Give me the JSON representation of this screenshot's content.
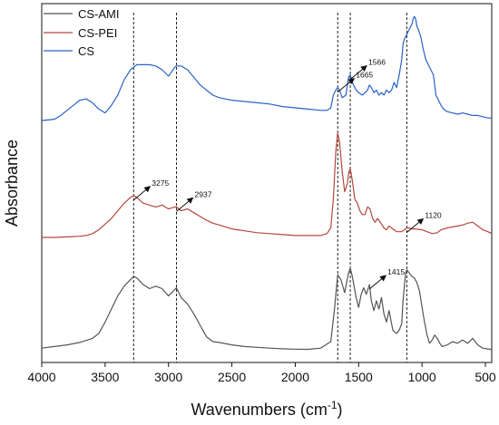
{
  "chart_data": {
    "type": "line",
    "title": "",
    "xlabel": "Wavenumbers (cm",
    "xlabel_sup": "-1",
    "xlabel_close": ")",
    "ylabel": "Absorbance",
    "xlim": [
      4000,
      450
    ],
    "x_reversed": true,
    "x_ticks": [
      4000,
      3500,
      3000,
      2500,
      2000,
      1500,
      1000,
      500
    ],
    "y_ticks_shown": false,
    "grid": false,
    "legend_position": "top-left",
    "series": [
      {
        "name": "CS-AMI",
        "color": "#555555",
        "points": [
          [
            4000,
            0.01
          ],
          [
            3900,
            0.02
          ],
          [
            3800,
            0.03
          ],
          [
            3700,
            0.045
          ],
          [
            3600,
            0.07
          ],
          [
            3550,
            0.1
          ],
          [
            3500,
            0.17
          ],
          [
            3450,
            0.25
          ],
          [
            3400,
            0.33
          ],
          [
            3350,
            0.39
          ],
          [
            3300,
            0.43
          ],
          [
            3275,
            0.45
          ],
          [
            3250,
            0.44
          ],
          [
            3200,
            0.4
          ],
          [
            3150,
            0.375
          ],
          [
            3100,
            0.39
          ],
          [
            3050,
            0.375
          ],
          [
            3000,
            0.33
          ],
          [
            2950,
            0.37
          ],
          [
            2937,
            0.38
          ],
          [
            2900,
            0.32
          ],
          [
            2850,
            0.28
          ],
          [
            2800,
            0.22
          ],
          [
            2750,
            0.15
          ],
          [
            2700,
            0.08
          ],
          [
            2650,
            0.05
          ],
          [
            2600,
            0.045
          ],
          [
            2500,
            0.03
          ],
          [
            2400,
            0.02
          ],
          [
            2300,
            0.015
          ],
          [
            2200,
            0.01
          ],
          [
            2100,
            0.006
          ],
          [
            2000,
            0.004
          ],
          [
            1900,
            0.003
          ],
          [
            1800,
            0.01
          ],
          [
            1720,
            0.05
          ],
          [
            1690,
            0.25
          ],
          [
            1665,
            0.46
          ],
          [
            1640,
            0.43
          ],
          [
            1610,
            0.35
          ],
          [
            1580,
            0.47
          ],
          [
            1566,
            0.5
          ],
          [
            1550,
            0.45
          ],
          [
            1520,
            0.32
          ],
          [
            1500,
            0.26
          ],
          [
            1480,
            0.34
          ],
          [
            1460,
            0.38
          ],
          [
            1440,
            0.34
          ],
          [
            1415,
            0.4
          ],
          [
            1400,
            0.3
          ],
          [
            1380,
            0.24
          ],
          [
            1360,
            0.3
          ],
          [
            1340,
            0.25
          ],
          [
            1320,
            0.32
          ],
          [
            1300,
            0.22
          ],
          [
            1280,
            0.17
          ],
          [
            1260,
            0.24
          ],
          [
            1230,
            0.12
          ],
          [
            1200,
            0.1
          ],
          [
            1180,
            0.12
          ],
          [
            1160,
            0.16
          ],
          [
            1150,
            0.3
          ],
          [
            1130,
            0.47
          ],
          [
            1120,
            0.49
          ],
          [
            1100,
            0.47
          ],
          [
            1080,
            0.45
          ],
          [
            1060,
            0.44
          ],
          [
            1040,
            0.41
          ],
          [
            1020,
            0.36
          ],
          [
            1000,
            0.26
          ],
          [
            980,
            0.17
          ],
          [
            960,
            0.09
          ],
          [
            940,
            0.04
          ],
          [
            920,
            0.06
          ],
          [
            900,
            0.09
          ],
          [
            880,
            0.07
          ],
          [
            860,
            0.04
          ],
          [
            840,
            0.02
          ],
          [
            800,
            0.03
          ],
          [
            760,
            0.05
          ],
          [
            720,
            0.04
          ],
          [
            680,
            0.06
          ],
          [
            640,
            0.04
          ],
          [
            600,
            0.07
          ],
          [
            560,
            0.03
          ],
          [
            520,
            0.01
          ],
          [
            480,
            0.005
          ],
          [
            450,
            0.002
          ]
        ]
      },
      {
        "name": "CS-PEI",
        "color": "#b5473d",
        "points": [
          [
            4000,
            0.0
          ],
          [
            3900,
            0.0
          ],
          [
            3800,
            0.003
          ],
          [
            3700,
            0.006
          ],
          [
            3650,
            0.01
          ],
          [
            3600,
            0.02
          ],
          [
            3550,
            0.04
          ],
          [
            3500,
            0.07
          ],
          [
            3450,
            0.1
          ],
          [
            3400,
            0.14
          ],
          [
            3350,
            0.18
          ],
          [
            3300,
            0.21
          ],
          [
            3275,
            0.22
          ],
          [
            3250,
            0.21
          ],
          [
            3200,
            0.18
          ],
          [
            3150,
            0.17
          ],
          [
            3100,
            0.16
          ],
          [
            3050,
            0.17
          ],
          [
            3000,
            0.15
          ],
          [
            2950,
            0.16
          ],
          [
            2937,
            0.16
          ],
          [
            2900,
            0.14
          ],
          [
            2850,
            0.15
          ],
          [
            2800,
            0.13
          ],
          [
            2750,
            0.11
          ],
          [
            2700,
            0.09
          ],
          [
            2650,
            0.075
          ],
          [
            2600,
            0.065
          ],
          [
            2500,
            0.045
          ],
          [
            2400,
            0.035
          ],
          [
            2300,
            0.025
          ],
          [
            2200,
            0.02
          ],
          [
            2100,
            0.015
          ],
          [
            2000,
            0.01
          ],
          [
            1900,
            0.01
          ],
          [
            1800,
            0.01
          ],
          [
            1750,
            0.02
          ],
          [
            1720,
            0.05
          ],
          [
            1700,
            0.2
          ],
          [
            1680,
            0.45
          ],
          [
            1665,
            0.55
          ],
          [
            1650,
            0.5
          ],
          [
            1630,
            0.35
          ],
          [
            1610,
            0.24
          ],
          [
            1590,
            0.28
          ],
          [
            1575,
            0.35
          ],
          [
            1566,
            0.36
          ],
          [
            1550,
            0.3
          ],
          [
            1530,
            0.2
          ],
          [
            1510,
            0.18
          ],
          [
            1490,
            0.14
          ],
          [
            1470,
            0.12
          ],
          [
            1450,
            0.12
          ],
          [
            1430,
            0.16
          ],
          [
            1410,
            0.15
          ],
          [
            1390,
            0.1
          ],
          [
            1370,
            0.08
          ],
          [
            1350,
            0.1
          ],
          [
            1330,
            0.08
          ],
          [
            1300,
            0.05
          ],
          [
            1280,
            0.04
          ],
          [
            1260,
            0.06
          ],
          [
            1240,
            0.05
          ],
          [
            1200,
            0.03
          ],
          [
            1160,
            0.03
          ],
          [
            1140,
            0.04
          ],
          [
            1120,
            0.05
          ],
          [
            1100,
            0.05
          ],
          [
            1080,
            0.045
          ],
          [
            1050,
            0.045
          ],
          [
            1000,
            0.04
          ],
          [
            960,
            0.03
          ],
          [
            920,
            0.02
          ],
          [
            880,
            0.025
          ],
          [
            850,
            0.04
          ],
          [
            800,
            0.05
          ],
          [
            760,
            0.055
          ],
          [
            720,
            0.06
          ],
          [
            680,
            0.065
          ],
          [
            640,
            0.075
          ],
          [
            600,
            0.08
          ],
          [
            560,
            0.06
          ],
          [
            520,
            0.04
          ],
          [
            480,
            0.03
          ],
          [
            450,
            0.02
          ]
        ]
      },
      {
        "name": "CS",
        "color": "#2a62c9",
        "points": [
          [
            4000,
            0.0
          ],
          [
            3900,
            0.005
          ],
          [
            3850,
            0.02
          ],
          [
            3800,
            0.04
          ],
          [
            3750,
            0.06
          ],
          [
            3700,
            0.08
          ],
          [
            3650,
            0.085
          ],
          [
            3600,
            0.07
          ],
          [
            3550,
            0.045
          ],
          [
            3500,
            0.03
          ],
          [
            3450,
            0.06
          ],
          [
            3400,
            0.1
          ],
          [
            3350,
            0.16
          ],
          [
            3300,
            0.2
          ],
          [
            3250,
            0.22
          ],
          [
            3200,
            0.22
          ],
          [
            3150,
            0.22
          ],
          [
            3100,
            0.215
          ],
          [
            3050,
            0.2
          ],
          [
            3000,
            0.175
          ],
          [
            2950,
            0.21
          ],
          [
            2937,
            0.215
          ],
          [
            2900,
            0.215
          ],
          [
            2850,
            0.2
          ],
          [
            2800,
            0.17
          ],
          [
            2750,
            0.14
          ],
          [
            2700,
            0.12
          ],
          [
            2650,
            0.1
          ],
          [
            2600,
            0.09
          ],
          [
            2500,
            0.08
          ],
          [
            2400,
            0.075
          ],
          [
            2300,
            0.07
          ],
          [
            2200,
            0.065
          ],
          [
            2100,
            0.055
          ],
          [
            2000,
            0.05
          ],
          [
            1900,
            0.045
          ],
          [
            1800,
            0.04
          ],
          [
            1750,
            0.04
          ],
          [
            1720,
            0.05
          ],
          [
            1700,
            0.1
          ],
          [
            1680,
            0.12
          ],
          [
            1665,
            0.13
          ],
          [
            1650,
            0.12
          ],
          [
            1630,
            0.09
          ],
          [
            1600,
            0.1
          ],
          [
            1580,
            0.17
          ],
          [
            1566,
            0.18
          ],
          [
            1550,
            0.15
          ],
          [
            1520,
            0.12
          ],
          [
            1500,
            0.11
          ],
          [
            1470,
            0.1
          ],
          [
            1450,
            0.11
          ],
          [
            1430,
            0.12
          ],
          [
            1415,
            0.14
          ],
          [
            1400,
            0.13
          ],
          [
            1380,
            0.11
          ],
          [
            1360,
            0.12
          ],
          [
            1340,
            0.1
          ],
          [
            1320,
            0.11
          ],
          [
            1300,
            0.1
          ],
          [
            1280,
            0.12
          ],
          [
            1260,
            0.11
          ],
          [
            1240,
            0.12
          ],
          [
            1220,
            0.15
          ],
          [
            1200,
            0.13
          ],
          [
            1180,
            0.18
          ],
          [
            1160,
            0.24
          ],
          [
            1150,
            0.3
          ],
          [
            1140,
            0.32
          ],
          [
            1120,
            0.34
          ],
          [
            1100,
            0.36
          ],
          [
            1080,
            0.38
          ],
          [
            1070,
            0.4
          ],
          [
            1060,
            0.41
          ],
          [
            1050,
            0.4
          ],
          [
            1040,
            0.37
          ],
          [
            1030,
            0.36
          ],
          [
            1010,
            0.33
          ],
          [
            990,
            0.28
          ],
          [
            970,
            0.24
          ],
          [
            950,
            0.22
          ],
          [
            930,
            0.2
          ],
          [
            910,
            0.18
          ],
          [
            890,
            0.1
          ],
          [
            870,
            0.08
          ],
          [
            850,
            0.06
          ],
          [
            830,
            0.045
          ],
          [
            800,
            0.035
          ],
          [
            760,
            0.03
          ],
          [
            720,
            0.025
          ],
          [
            680,
            0.03
          ],
          [
            640,
            0.025
          ],
          [
            600,
            0.02
          ],
          [
            560,
            0.02
          ],
          [
            520,
            0.015
          ],
          [
            480,
            0.01
          ],
          [
            450,
            0.01
          ]
        ]
      }
    ],
    "reference_lines": [
      3275,
      2937,
      1665,
      1566,
      1120
    ],
    "annotations": [
      {
        "text": "3275",
        "x": 3275,
        "series": "CS-PEI"
      },
      {
        "text": "2937",
        "x": 2937,
        "series": "CS-PEI"
      },
      {
        "text": "1665",
        "x": 1665,
        "series": "CS"
      },
      {
        "text": "1566",
        "x": 1566,
        "series": "CS"
      },
      {
        "text": "1120",
        "x": 1120,
        "series": "CS-PEI"
      },
      {
        "text": "1415",
        "x": 1415,
        "series": "CS-AMI"
      }
    ]
  }
}
